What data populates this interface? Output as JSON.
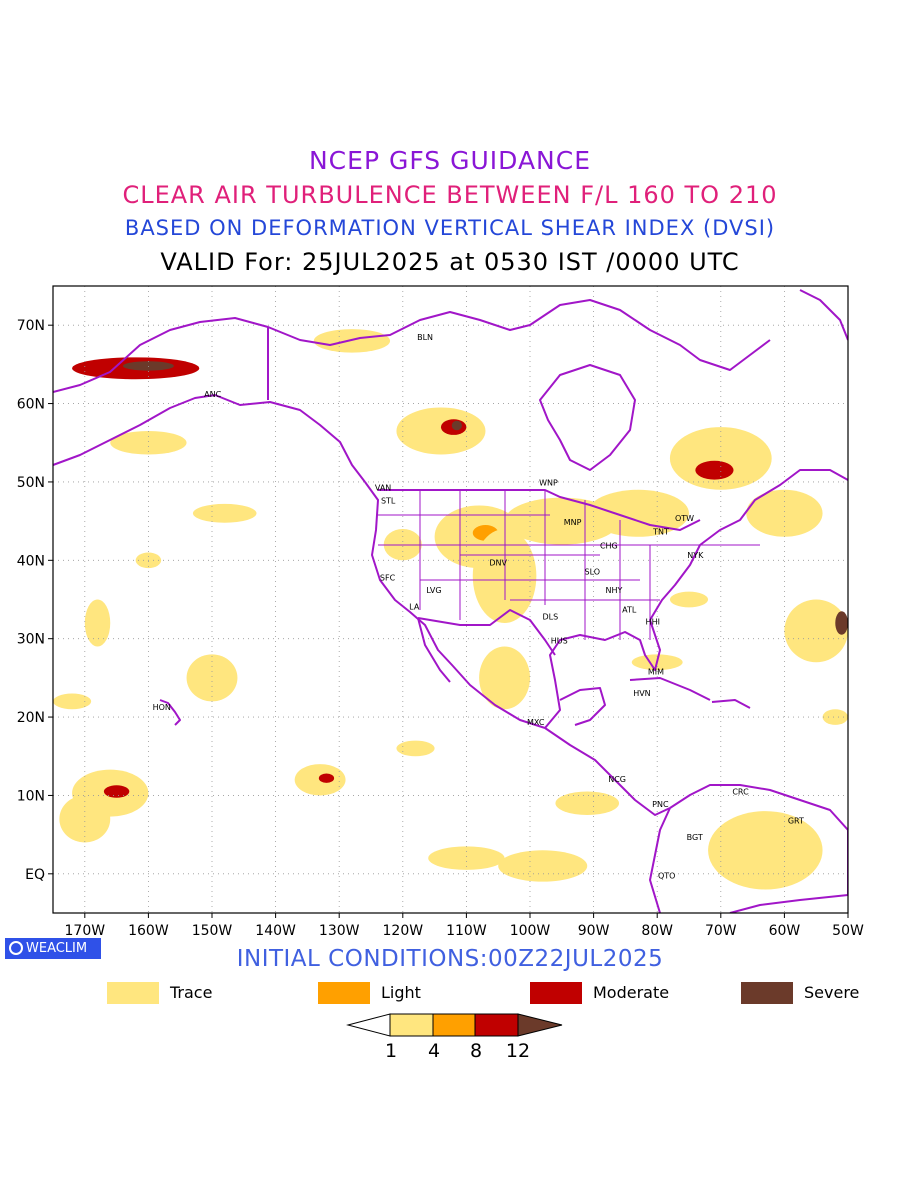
{
  "titles": {
    "line1": "NCEP GFS GUIDANCE",
    "line2": "CLEAR AIR TURBULENCE BETWEEN F/L 160 TO 210",
    "line3": "BASED ON DEFORMATION VERTICAL SHEAR INDEX (DVSI)",
    "line4": "VALID For: 25JUL2025 at 0530 IST /0000 UTC"
  },
  "map": {
    "lon_range": [
      -175,
      -50
    ],
    "lat_range": [
      -5,
      75
    ],
    "lon_ticks": [
      {
        "lon": -170,
        "label": "170W"
      },
      {
        "lon": -160,
        "label": "160W"
      },
      {
        "lon": -150,
        "label": "150W"
      },
      {
        "lon": -140,
        "label": "140W"
      },
      {
        "lon": -130,
        "label": "130W"
      },
      {
        "lon": -120,
        "label": "120W"
      },
      {
        "lon": -110,
        "label": "110W"
      },
      {
        "lon": -100,
        "label": "100W"
      },
      {
        "lon": -90,
        "label": "90W"
      },
      {
        "lon": -80,
        "label": "80W"
      },
      {
        "lon": -70,
        "label": "70W"
      },
      {
        "lon": -60,
        "label": "60W"
      },
      {
        "lon": -50,
        "label": "50W"
      }
    ],
    "lat_ticks": [
      {
        "lat": 70,
        "label": "70N"
      },
      {
        "lat": 60,
        "label": "60N"
      },
      {
        "lat": 50,
        "label": "50N"
      },
      {
        "lat": 40,
        "label": "40N"
      },
      {
        "lat": 30,
        "label": "30N"
      },
      {
        "lat": 20,
        "label": "20N"
      },
      {
        "lat": 10,
        "label": "10N"
      },
      {
        "lat": 0,
        "label": "EQ"
      }
    ],
    "grid": true,
    "coastline_color": "#a116c8",
    "stations": [
      {
        "code": "BLN",
        "lon": -116.5,
        "lat": 68.5
      },
      {
        "code": "ANC",
        "lon": -149.9,
        "lat": 61.2
      },
      {
        "code": "VAN",
        "lon": -123.1,
        "lat": 49.3
      },
      {
        "code": "STL",
        "lon": -122.3,
        "lat": 47.6
      },
      {
        "code": "WNP",
        "lon": -97.1,
        "lat": 49.9
      },
      {
        "code": "MNP",
        "lon": -93.3,
        "lat": 44.9
      },
      {
        "code": "TNT",
        "lon": -79.4,
        "lat": 43.7
      },
      {
        "code": "OTW",
        "lon": -75.7,
        "lat": 45.4
      },
      {
        "code": "CHG",
        "lon": -87.6,
        "lat": 41.9
      },
      {
        "code": "NYK",
        "lon": -74.0,
        "lat": 40.7
      },
      {
        "code": "DNV",
        "lon": -105.0,
        "lat": 39.7
      },
      {
        "code": "SFC",
        "lon": -122.4,
        "lat": 37.8
      },
      {
        "code": "SLO",
        "lon": -90.2,
        "lat": 38.6
      },
      {
        "code": "LVG",
        "lon": -115.1,
        "lat": 36.2
      },
      {
        "code": "NHY",
        "lon": -86.8,
        "lat": 36.2
      },
      {
        "code": "LA",
        "lon": -118.2,
        "lat": 34.1
      },
      {
        "code": "ATL",
        "lon": -84.4,
        "lat": 33.7
      },
      {
        "code": "DLS",
        "lon": -96.8,
        "lat": 32.8
      },
      {
        "code": "HHI",
        "lon": -80.7,
        "lat": 32.2
      },
      {
        "code": "HUS",
        "lon": -95.4,
        "lat": 29.8
      },
      {
        "code": "MIM",
        "lon": -80.2,
        "lat": 25.8
      },
      {
        "code": "HON",
        "lon": -157.9,
        "lat": 21.3
      },
      {
        "code": "HVN",
        "lon": -82.4,
        "lat": 23.1
      },
      {
        "code": "MXC",
        "lon": -99.1,
        "lat": 19.4
      },
      {
        "code": "NCG",
        "lon": -86.3,
        "lat": 12.1
      },
      {
        "code": "CRC",
        "lon": -66.9,
        "lat": 10.5
      },
      {
        "code": "PNC",
        "lon": -79.5,
        "lat": 8.9
      },
      {
        "code": "GRT",
        "lon": -58.2,
        "lat": 6.8
      },
      {
        "code": "BGT",
        "lon": -74.1,
        "lat": 4.7
      },
      {
        "code": "QTO",
        "lon": -78.5,
        "lat": -0.2
      }
    ],
    "turbulence_areas": [
      {
        "lon": -162,
        "lat": 64.5,
        "rx": 10,
        "ry": 1.4,
        "level": "moderate"
      },
      {
        "lon": -160,
        "lat": 64.8,
        "rx": 4,
        "ry": 0.6,
        "level": "severe"
      },
      {
        "lon": -114,
        "lat": 56.5,
        "rx": 7,
        "ry": 3,
        "level": "trace"
      },
      {
        "lon": -112,
        "lat": 57,
        "rx": 2,
        "ry": 1,
        "level": "moderate"
      },
      {
        "lon": -111.5,
        "lat": 57.2,
        "rx": 0.8,
        "ry": 0.6,
        "level": "severe"
      },
      {
        "lon": -70,
        "lat": 53,
        "rx": 8,
        "ry": 4,
        "level": "trace"
      },
      {
        "lon": -71,
        "lat": 51.5,
        "rx": 3,
        "ry": 1.2,
        "level": "moderate"
      },
      {
        "lon": -108,
        "lat": 43,
        "rx": 7,
        "ry": 4,
        "level": "trace"
      },
      {
        "lon": -107,
        "lat": 43.5,
        "rx": 2,
        "ry": 1,
        "level": "light"
      },
      {
        "lon": -95,
        "lat": 45,
        "rx": 9,
        "ry": 3,
        "level": "trace"
      },
      {
        "lon": -55,
        "lat": 31,
        "rx": 5,
        "ry": 4,
        "level": "trace"
      },
      {
        "lon": -51,
        "lat": 32,
        "rx": 1,
        "ry": 1.5,
        "level": "severe"
      },
      {
        "lon": -166,
        "lat": 10.3,
        "rx": 6,
        "ry": 3,
        "level": "trace"
      },
      {
        "lon": -165,
        "lat": 10.5,
        "rx": 2,
        "ry": 0.8,
        "level": "moderate"
      },
      {
        "lon": -150,
        "lat": 25,
        "rx": 4,
        "ry": 3,
        "level": "trace"
      },
      {
        "lon": -133,
        "lat": 12,
        "rx": 4,
        "ry": 2,
        "level": "trace"
      },
      {
        "lon": -132,
        "lat": 12.2,
        "rx": 1.2,
        "ry": 0.6,
        "level": "moderate"
      },
      {
        "lon": -104,
        "lat": 38,
        "rx": 5,
        "ry": 6,
        "level": "trace"
      },
      {
        "lon": -91,
        "lat": 9,
        "rx": 5,
        "ry": 1.5,
        "level": "trace"
      },
      {
        "lon": -104,
        "lat": 25,
        "rx": 4,
        "ry": 4,
        "level": "trace"
      },
      {
        "lon": -63,
        "lat": 3,
        "rx": 9,
        "ry": 5,
        "level": "trace"
      },
      {
        "lon": -83,
        "lat": 46,
        "rx": 8,
        "ry": 3,
        "level": "trace"
      },
      {
        "lon": -120,
        "lat": 42,
        "rx": 3,
        "ry": 2,
        "level": "trace"
      },
      {
        "lon": -98,
        "lat": 1,
        "rx": 7,
        "ry": 2,
        "level": "trace"
      },
      {
        "lon": -110,
        "lat": 2,
        "rx": 6,
        "ry": 1.5,
        "level": "trace"
      },
      {
        "lon": -170,
        "lat": 7,
        "rx": 4,
        "ry": 3,
        "level": "trace"
      },
      {
        "lon": -172,
        "lat": 22,
        "rx": 3,
        "ry": 1,
        "level": "trace"
      },
      {
        "lon": -160,
        "lat": 55,
        "rx": 6,
        "ry": 1.5,
        "level": "trace"
      },
      {
        "lon": -148,
        "lat": 46,
        "rx": 5,
        "ry": 1.2,
        "level": "trace"
      },
      {
        "lon": -128,
        "lat": 68,
        "rx": 6,
        "ry": 1.5,
        "level": "trace"
      },
      {
        "lon": -60,
        "lat": 46,
        "rx": 6,
        "ry": 3,
        "level": "trace"
      },
      {
        "lon": -80,
        "lat": 27,
        "rx": 4,
        "ry": 1,
        "level": "trace"
      },
      {
        "lon": -75,
        "lat": 35,
        "rx": 3,
        "ry": 1,
        "level": "trace"
      },
      {
        "lon": -160,
        "lat": 40,
        "rx": 2,
        "ry": 1,
        "level": "trace"
      },
      {
        "lon": -168,
        "lat": 32,
        "rx": 2,
        "ry": 3,
        "level": "trace"
      },
      {
        "lon": -118,
        "lat": 16,
        "rx": 3,
        "ry": 1,
        "level": "trace"
      },
      {
        "lon": -52,
        "lat": 20,
        "rx": 2,
        "ry": 1,
        "level": "trace"
      }
    ]
  },
  "badge": {
    "label": "WEACLIM"
  },
  "initial_conditions": "INITIAL CONDITIONS:00Z22JUL2025",
  "legend": [
    {
      "label": "Trace",
      "color": "#ffe67f"
    },
    {
      "label": "Light",
      "color": "#ffa000"
    },
    {
      "label": "Moderate",
      "color": "#c00000"
    },
    {
      "label": "Severe",
      "color": "#6b3a2a"
    }
  ],
  "colorbar": {
    "ticks": [
      "1",
      "4",
      "8",
      "12"
    ],
    "colors": [
      "#ffffff",
      "#ffe67f",
      "#ffa000",
      "#c00000",
      "#6b3a2a"
    ]
  }
}
